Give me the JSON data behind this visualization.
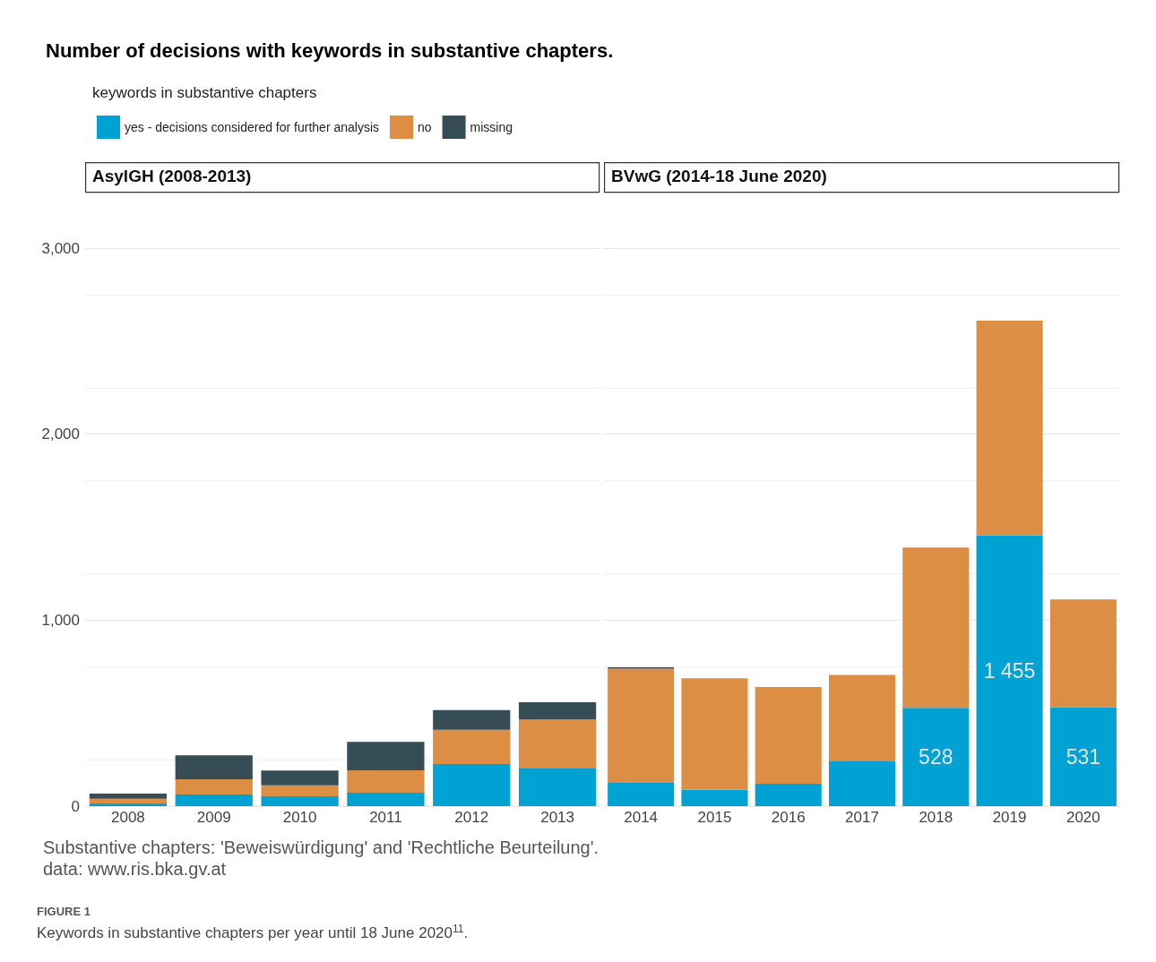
{
  "chart_data": [
    {
      "type": "bar",
      "stacked": true,
      "title": "Number of decisions with keywords in substantive chapters.",
      "subtitle": "AsylGH (2008-2013)",
      "legend_title": "keywords in substantive chapters",
      "legend": "top left",
      "grid": "y",
      "tick_labels": "xy",
      "categories": [
        "2008",
        "2009",
        "2010",
        "2011",
        "2012",
        "2013"
      ],
      "ylim": [
        0,
        3000
      ],
      "yticks": [
        0,
        {
          "value": 1000,
          "label": "1,000"
        },
        {
          "value": 2000,
          "label": "2,000"
        },
        {
          "value": 3000,
          "label": "3,000"
        }
      ],
      "series": [
        {
          "name": "yes - decisions considered for further analysis",
          "color": "#00a2d3",
          "values": [
            15,
            62,
            53,
            72,
            226,
            206
          ]
        },
        {
          "name": "no",
          "color": "#dd8e45",
          "values": [
            25,
            83,
            59,
            121,
            184,
            260
          ]
        },
        {
          "name": "missing",
          "color": "#374d56",
          "values": [
            28,
            128,
            80,
            152,
            107,
            92
          ]
        }
      ],
      "annotations": [
        "Substantive chapters: 'Beweiswürdigung' and 'Rechtliche Beurteilung'.",
        "data: www.ris.bka.gv.at",
        "FIGURE 1",
        "Keywords in substantive chapters per year until 18 June 2020$^{11}$."
      ]
    },
    {
      "type": "bar",
      "stacked": true,
      "subtitle": "BVwG (2014-18 June 2020)",
      "legend": false,
      "grid": "y",
      "tick_labels": "x",
      "categories": [
        "2014",
        "2015",
        "2016",
        "2017",
        "2018",
        "2019",
        "2020"
      ],
      "ylim": [
        0,
        3000
      ],
      "yticks": [
        0,
        1000,
        2000,
        3000
      ],
      "series": [
        {
          "color": "#00a2d3",
          "values": [
            125,
            89,
            120,
            241,
            528,
            1455,
            531
          ],
          "value_labels": [
            null,
            null,
            null,
            null,
            "528",
            "1 455",
            "531"
          ]
        },
        {
          "color": "#dd8e45",
          "values": [
            614,
            598,
            521,
            465,
            862,
            1155,
            580
          ]
        },
        {
          "color": "#374d56",
          "values": [
            7,
            0,
            0,
            0,
            0,
            0,
            0
          ]
        }
      ]
    }
  ]
}
